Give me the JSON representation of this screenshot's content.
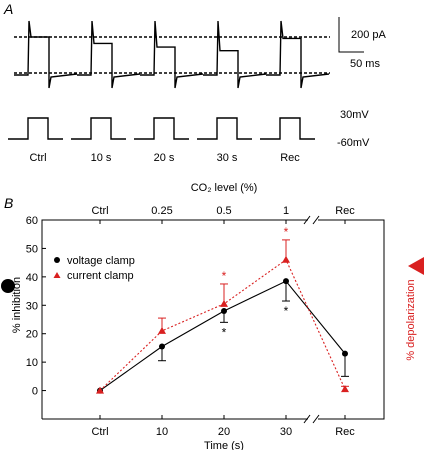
{
  "panel_a": {
    "label": "A",
    "scale_current": "200 pA",
    "scale_time": "50 ms",
    "holding_high": "30mV",
    "holding_low": "-60mV",
    "sweeps": [
      {
        "label": "Ctrl",
        "outward_level": 1.0
      },
      {
        "label": "10 s",
        "outward_level": 0.82
      },
      {
        "label": "20 s",
        "outward_level": 0.72
      },
      {
        "label": "30 s",
        "outward_level": 0.62
      },
      {
        "label": "Rec",
        "outward_level": 0.96
      }
    ]
  },
  "colors": {
    "voltage": "#000000",
    "current": "#d92020"
  },
  "chart_data": {
    "type": "line",
    "panel_label": "B",
    "top_axis_title": "CO₂ level (%)",
    "top_tick_labels": [
      "Ctrl",
      "0.25",
      "0.5",
      "1",
      "Rec"
    ],
    "xlabel": "Time (s)",
    "categories": [
      "Ctrl",
      "10",
      "20",
      "30",
      "Rec"
    ],
    "ylabel_left": "% inhibition",
    "ylabel_right": "% depolarization",
    "ylim": [
      -10,
      60
    ],
    "yticks": [
      0,
      10,
      20,
      30,
      40,
      50,
      60
    ],
    "legend_position": "top-left",
    "series": [
      {
        "name": "voltage clamp",
        "marker": "circle",
        "line": "solid",
        "values": [
          0,
          15.5,
          28,
          38.5,
          13
        ],
        "error_low": [
          0,
          5,
          4,
          7,
          8
        ],
        "error_high": [
          0,
          0,
          0,
          0,
          0
        ],
        "significance": [
          "",
          "",
          "*",
          "*",
          ""
        ]
      },
      {
        "name": "current clamp",
        "marker": "triangle",
        "line": "dotted",
        "values": [
          0,
          21,
          30.5,
          46,
          0.5
        ],
        "error_low": [
          0,
          0,
          0,
          0,
          0
        ],
        "error_high": [
          0,
          4.5,
          7,
          7,
          1
        ],
        "significance": [
          "",
          "",
          "*",
          "*",
          ""
        ]
      }
    ]
  }
}
